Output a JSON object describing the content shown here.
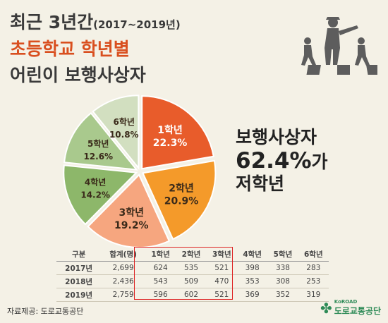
{
  "header": {
    "line1_main": "최근 3년간",
    "line1_sub": "(2017~2019년)",
    "line2": "초등학교 학년별",
    "line3": "어린이 보행사상자"
  },
  "callout": {
    "line1": "보행사상자",
    "line2_value": "62.4%",
    "line2_suffix": "가",
    "line3": "저학년"
  },
  "chart_data": {
    "type": "pie",
    "title": "",
    "slices": [
      {
        "label": "1학년",
        "value": 22.3,
        "value_text": "22.3%",
        "color": "#e85c2b"
      },
      {
        "label": "2학년",
        "value": 20.9,
        "value_text": "20.9%",
        "color": "#f49a2a"
      },
      {
        "label": "3학년",
        "value": 19.2,
        "value_text": "19.2%",
        "color": "#f6a67f"
      },
      {
        "label": "4학년",
        "value": 14.2,
        "value_text": "14.2%",
        "color": "#8db76a"
      },
      {
        "label": "5학년",
        "value": 12.6,
        "value_text": "12.6%",
        "color": "#a9c98d"
      },
      {
        "label": "6학년",
        "value": 10.8,
        "value_text": "10.8%",
        "color": "#d2dfc0"
      }
    ],
    "highlight_colors": {
      "accent": "#d94f1f",
      "box": "#dd2222"
    }
  },
  "table": {
    "headers": [
      "구분",
      "합계(명)",
      "1학년",
      "2학년",
      "3학년",
      "4학년",
      "5학년",
      "6학년"
    ],
    "rows": [
      [
        "2017년",
        "2,699",
        "624",
        "535",
        "521",
        "398",
        "338",
        "283"
      ],
      [
        "2018년",
        "2,436",
        "543",
        "509",
        "470",
        "353",
        "308",
        "253"
      ],
      [
        "2019년",
        "2,759",
        "596",
        "602",
        "521",
        "369",
        "352",
        "319"
      ]
    ]
  },
  "footer": {
    "source": "자료제공: 도로교통공단",
    "logo_small": "KoROAD",
    "logo_big": "도로교통공단",
    "logo_icon": "clover-icon"
  },
  "icons": {
    "pedestrian": "crossing-pedestrians-icon"
  }
}
